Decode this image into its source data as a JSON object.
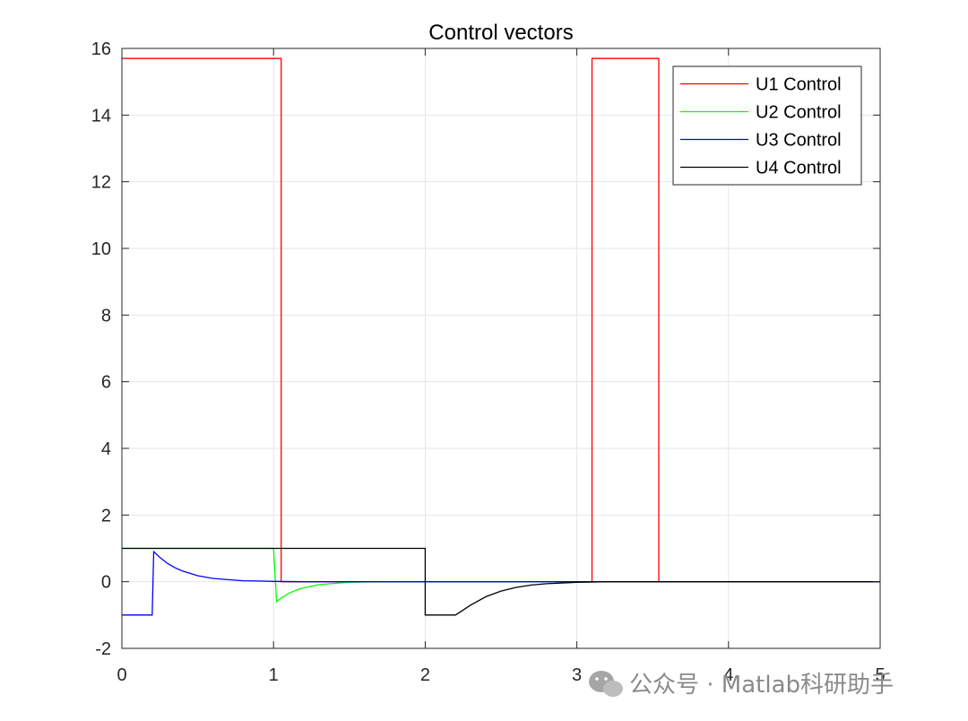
{
  "chart_data": {
    "type": "line",
    "title": "Control vectors",
    "xlabel": "",
    "ylabel": "",
    "xlim": [
      0,
      5
    ],
    "ylim": [
      -2,
      16
    ],
    "xticks": [
      0,
      1,
      2,
      3,
      4,
      5
    ],
    "yticks": [
      -2,
      0,
      2,
      4,
      6,
      8,
      10,
      12,
      14,
      16
    ],
    "grid": true,
    "legend_position": "top-right",
    "series": [
      {
        "name": "U1 Control",
        "color": "#ff0000",
        "x": [
          0,
          1.05,
          1.05,
          3.1,
          3.1,
          3.54,
          3.54,
          5
        ],
        "y": [
          15.7,
          15.7,
          0,
          0,
          15.7,
          15.7,
          0,
          0
        ]
      },
      {
        "name": "U2 Control",
        "color": "#00ff00",
        "x": [
          0,
          1.0,
          1.0,
          1.02,
          1.05,
          1.1,
          1.15,
          1.2,
          1.3,
          1.4,
          1.5,
          1.6,
          1.8,
          2.0,
          5
        ],
        "y": [
          1,
          1,
          1,
          -0.6,
          -0.49,
          -0.35,
          -0.25,
          -0.18,
          -0.09,
          -0.05,
          -0.02,
          -0.01,
          0,
          0,
          0
        ]
      },
      {
        "name": "U3 Control",
        "color": "#0000ff",
        "x": [
          0,
          0.2,
          0.21,
          0.25,
          0.3,
          0.35,
          0.4,
          0.5,
          0.6,
          0.7,
          0.8,
          0.9,
          1.0,
          1.2,
          1.5,
          5
        ],
        "y": [
          -1,
          -1,
          0.9,
          0.73,
          0.55,
          0.42,
          0.32,
          0.18,
          0.1,
          0.06,
          0.03,
          0.02,
          0.01,
          0,
          0,
          0
        ]
      },
      {
        "name": "U4 Control",
        "color": "#000000",
        "x": [
          0,
          2.0,
          2.0,
          2.2,
          2.25,
          2.3,
          2.4,
          2.5,
          2.6,
          2.7,
          2.8,
          3.0,
          3.2,
          5
        ],
        "y": [
          1,
          1,
          -1,
          -1,
          -0.85,
          -0.7,
          -0.45,
          -0.28,
          -0.17,
          -0.1,
          -0.06,
          -0.02,
          0,
          0
        ]
      }
    ]
  },
  "watermark": {
    "text": "公众号 · Matlab科研助手",
    "icon": "wechat-icon"
  }
}
